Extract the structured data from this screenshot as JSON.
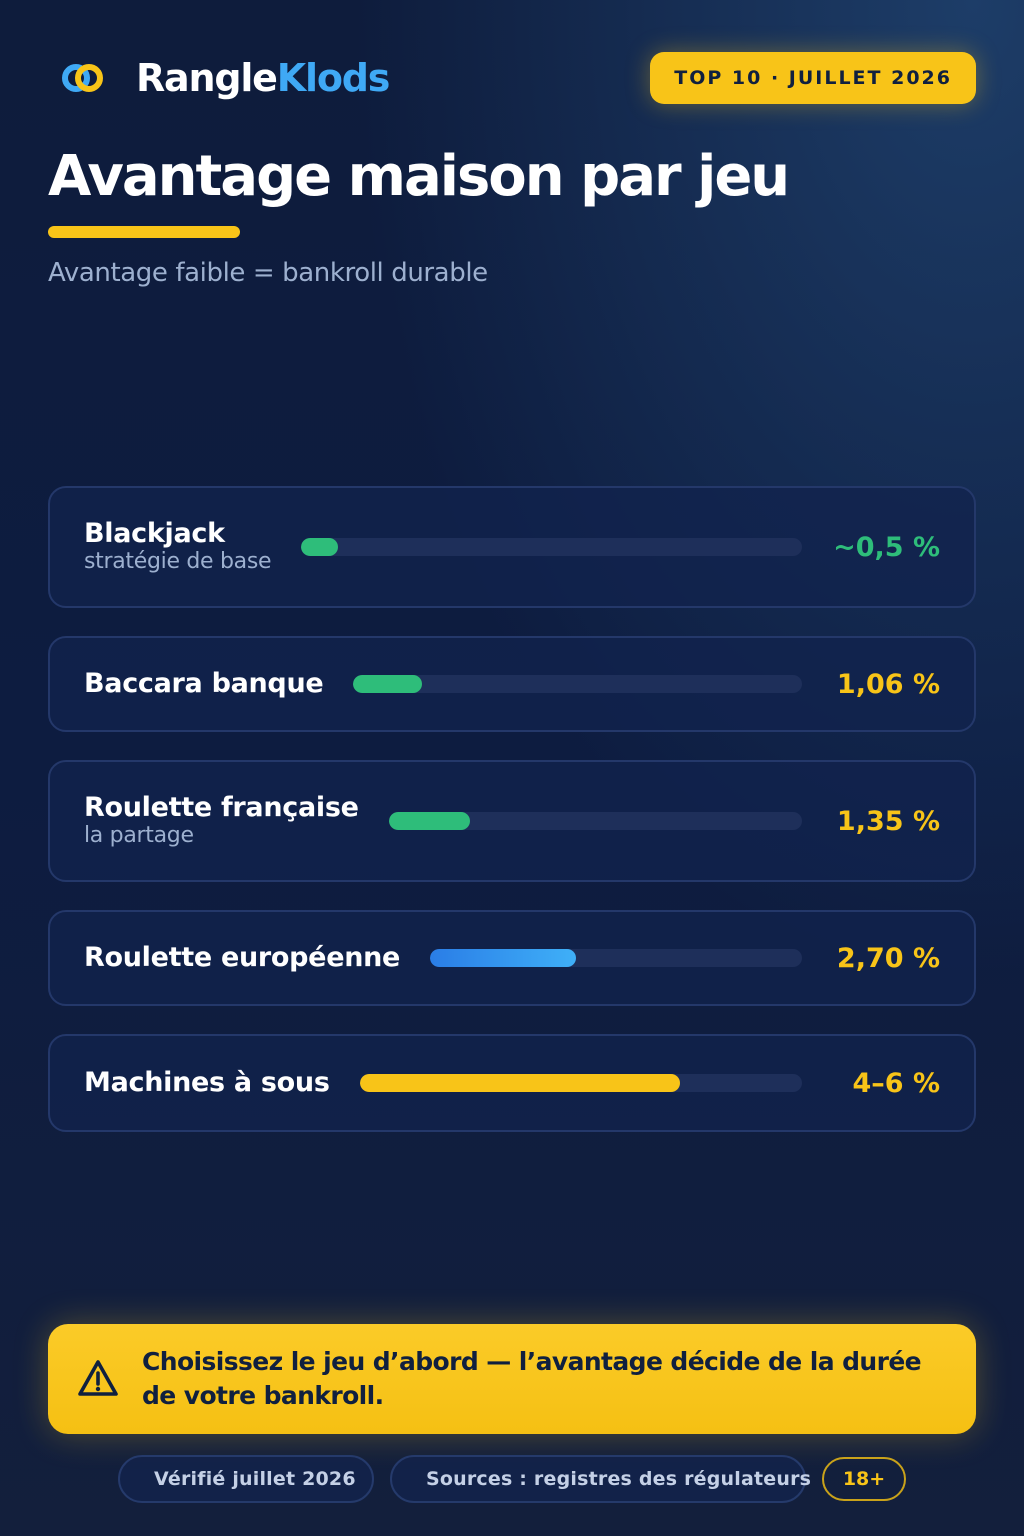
{
  "brand": {
    "part1": "Rangle",
    "part2": "Klods"
  },
  "badge": "TOP 10 · JUILLET 2026",
  "title": "Avantage maison par jeu",
  "subtitle": "Avantage faible = bankroll durable",
  "games": [
    {
      "name": "Blackjack",
      "sub": "stratégie de base",
      "value": "~0,5 %",
      "edge_percent": 0.5,
      "color": "#2ebd7a",
      "value_color": "#2ebd7a"
    },
    {
      "name": "Baccara banque",
      "sub": "",
      "value": "1,06 %",
      "edge_percent": 1.06,
      "color": "#2ebd7a",
      "value_color": "#f8c418"
    },
    {
      "name": "Roulette française",
      "sub": "la partage",
      "value": "1,35 %",
      "edge_percent": 1.35,
      "color": "#2ebd7a",
      "value_color": "#f8c418"
    },
    {
      "name": "Roulette européenne",
      "sub": "",
      "value": "2,70 %",
      "edge_percent": 2.7,
      "color": "#2f8cf0",
      "value_color": "#f8c418"
    },
    {
      "name": "Machines à sous",
      "sub": "",
      "value": "4–6 %",
      "edge_percent": 5.0,
      "color": "#f8c418",
      "value_color": "#f8c418"
    }
  ],
  "alert": "Choisissez le jeu d’abord — l’avantage décide de la durée de votre bankroll.",
  "footer": {
    "verified": "Vérifié juillet 2026",
    "sources": "Sources : registres des régulateurs",
    "age": "18+"
  },
  "icons": [
    "rings-logo-icon",
    "warning-triangle-icon",
    "check-icon",
    "shield-check-icon"
  ]
}
